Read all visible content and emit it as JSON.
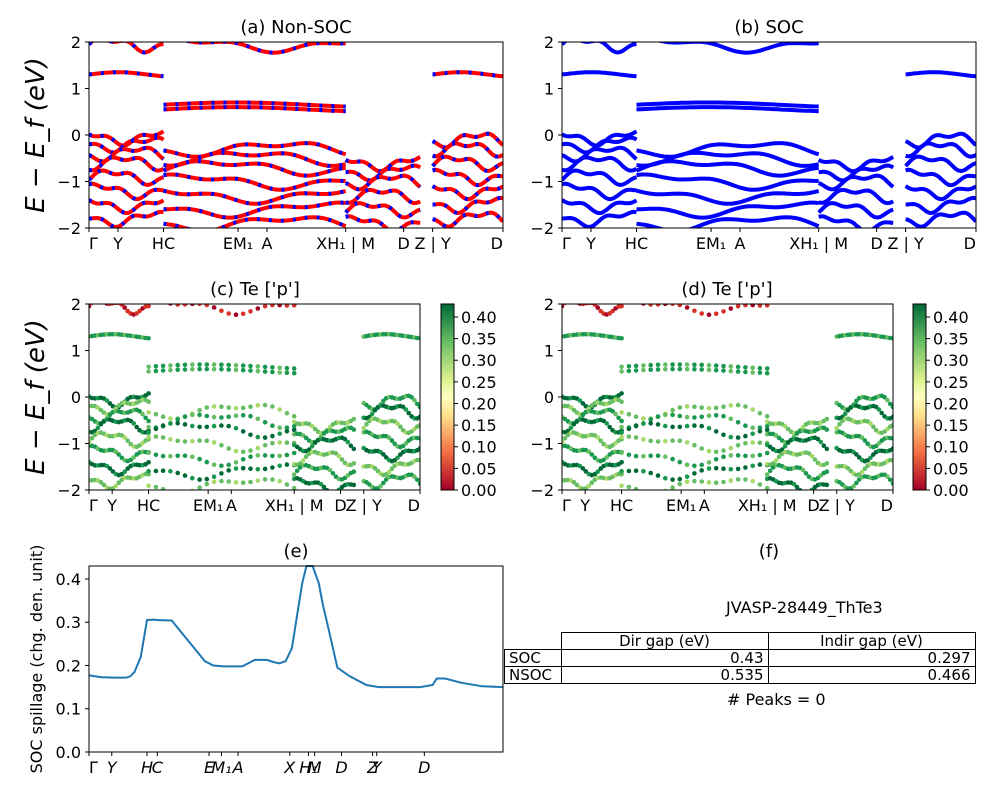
{
  "panels": {
    "a": {
      "title": "(a) Non-SOC"
    },
    "b": {
      "title": "(b) SOC"
    },
    "c": {
      "title": "(c)  Te ['p']"
    },
    "d": {
      "title": "(d) Te ['p']"
    },
    "e": {
      "title": "(e)"
    },
    "f": {
      "title": "(f)"
    }
  },
  "band_ylabel": "E − E_f (eV)",
  "band_yticks": [
    "2",
    "1",
    "0",
    "−1",
    "−2"
  ],
  "band_kpath_labels": [
    "Γ",
    "Y",
    "HC",
    "EM₁",
    "A",
    "XH₁ | M",
    "D",
    "Z | Y",
    "D"
  ],
  "colorbar": {
    "colormap": "RdYlGn",
    "range": [
      0.0,
      0.43
    ],
    "ticks": [
      "0.40",
      "0.35",
      "0.30",
      "0.25",
      "0.20",
      "0.15",
      "0.10",
      "0.05",
      "0.00"
    ]
  },
  "colors": {
    "nonsoc_band": "#ff0000",
    "nonsoc_dash": "#0000ff",
    "soc_band": "#0000ff",
    "spillage_line": "#1f77b4"
  },
  "info": {
    "material": "JVASP-28449_ThTe3",
    "peaks": "# Peaks = 0",
    "table": {
      "headers": [
        "Dir gap (eV)",
        "Indir gap (eV)"
      ],
      "rows": [
        {
          "label": "SOC",
          "dir": "0.43",
          "indir": "0.297"
        },
        {
          "label": "NSOC",
          "dir": "0.535",
          "indir": "0.466"
        }
      ]
    }
  },
  "chart_data": [
    {
      "type": "line",
      "panel": "(e)",
      "title": "(e)",
      "ylabel": "SOC spillage (chg. den. unit)",
      "ylim": [
        0.0,
        0.43
      ],
      "yticks": [
        "0.4",
        "0.3",
        "0.2",
        "0.1",
        "0.0"
      ],
      "xtick_labels": [
        "Γ",
        "Y",
        "H",
        "C",
        "E",
        "M₁",
        "A",
        "X",
        "H₁",
        "M",
        "D",
        "Z",
        "Y",
        "D"
      ],
      "x": [
        0.0,
        0.03,
        0.06,
        0.09,
        0.1,
        0.11,
        0.125,
        0.14,
        0.155,
        0.17,
        0.2,
        0.22,
        0.25,
        0.28,
        0.3,
        0.325,
        0.345,
        0.37,
        0.385,
        0.4,
        0.415,
        0.43,
        0.445,
        0.46,
        0.475,
        0.49,
        0.5,
        0.515,
        0.525,
        0.54,
        0.555,
        0.565,
        0.575,
        0.6,
        0.63,
        0.67,
        0.7,
        0.8,
        0.83,
        0.84,
        0.86,
        0.9,
        0.95,
        1.0
      ],
      "y": [
        0.177,
        0.173,
        0.172,
        0.172,
        0.175,
        0.185,
        0.22,
        0.305,
        0.306,
        0.305,
        0.304,
        0.28,
        0.245,
        0.21,
        0.2,
        0.198,
        0.198,
        0.198,
        0.205,
        0.213,
        0.213,
        0.213,
        0.208,
        0.205,
        0.21,
        0.24,
        0.3,
        0.39,
        0.43,
        0.43,
        0.39,
        0.34,
        0.3,
        0.195,
        0.175,
        0.155,
        0.15,
        0.15,
        0.155,
        0.17,
        0.17,
        0.16,
        0.152,
        0.15
      ]
    },
    {
      "type": "scatter",
      "panel": "(a)-(d)",
      "title": "",
      "xlabel": "",
      "ylabel": "E − E_f (eV)",
      "ylim": [
        -2,
        2
      ],
      "note_bands_energies_per_segment": [
        {
          "segment": "Γ-Y-H-C",
          "energies": [
            1.95,
            1.3,
            -0.05,
            -0.2,
            -0.4,
            -0.6,
            -0.9,
            -1.2,
            -1.5,
            -1.8
          ]
        },
        {
          "segment": "C-E-M1-A-X-H1",
          "energies": [
            1.95,
            0.65,
            0.55,
            -0.3,
            -0.5,
            -0.7,
            -1.0,
            -1.3,
            -1.6,
            -1.9
          ]
        },
        {
          "segment": "M-D",
          "energies": [
            -0.6,
            -0.8,
            -1.0,
            -1.3,
            -1.6,
            -1.9
          ]
        },
        {
          "segment": "Z|Y-D",
          "energies": [
            1.3,
            -0.1,
            -0.3,
            -0.6,
            -0.9,
            -1.2,
            -1.5,
            -1.8
          ]
        }
      ]
    }
  ]
}
